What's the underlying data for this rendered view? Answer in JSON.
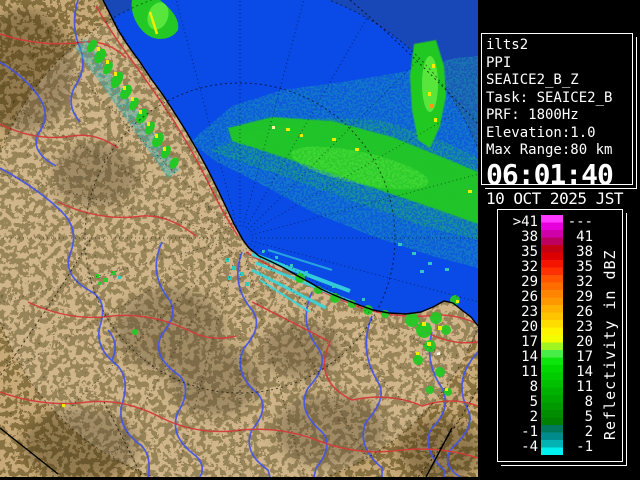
{
  "info_panel": {
    "lines": [
      "ilts2",
      "PPI",
      "SEAICE2_B_Z",
      "Task: SEAICE2_B",
      "PRF: 1800Hz",
      "Elevation:1.0",
      "Max Range:80 km"
    ],
    "time": "06:01:40",
    "date": "10 OCT 2025 JST"
  },
  "legend": {
    "title": "Reflectivity in dBZ",
    "rows": [
      {
        "left": ">41",
        "right": "---",
        "c1": "#ff38ff",
        "c2": "#e600dc"
      },
      {
        "left": "38",
        "right": "41",
        "c1": "#d000a8",
        "c2": "#bc0060"
      },
      {
        "left": "35",
        "right": "38",
        "c1": "#c40014",
        "c2": "#dc0000"
      },
      {
        "left": "32",
        "right": "35",
        "c1": "#f41400",
        "c2": "#ff3000"
      },
      {
        "left": "29",
        "right": "32",
        "c1": "#ff5400",
        "c2": "#ff6c00"
      },
      {
        "left": "26",
        "right": "29",
        "c1": "#ff8400",
        "c2": "#ff9800"
      },
      {
        "left": "23",
        "right": "26",
        "c1": "#ffb000",
        "c2": "#ffc400"
      },
      {
        "left": "20",
        "right": "23",
        "c1": "#ffdc00",
        "c2": "#fff400"
      },
      {
        "left": "17",
        "right": "20",
        "c1": "#f4fc00",
        "c2": "#a0f420"
      },
      {
        "left": "14",
        "right": "17",
        "c1": "#48ee48",
        "c2": "#0ce60c"
      },
      {
        "left": "11",
        "right": "14",
        "c1": "#00d800",
        "c2": "#00cc00"
      },
      {
        "left": "8",
        "right": "11",
        "c1": "#00c000",
        "c2": "#00b200"
      },
      {
        "left": "5",
        "right": "8",
        "c1": "#00a600",
        "c2": "#009a00"
      },
      {
        "left": "2",
        "right": "5",
        "c1": "#008e00",
        "c2": "#008200"
      },
      {
        "left": "-1",
        "right": "2",
        "c1": "#00785c",
        "c2": "#008c8c"
      },
      {
        "left": "-4",
        "right": "-1",
        "c1": "#00b2b2",
        "c2": "#00f0f0"
      }
    ]
  },
  "colors": {
    "sea_in": "#0a4ae6",
    "sea_out": "#1847b8",
    "land_tan": "#c8aa78",
    "land_dark": "#564419",
    "river": "#4455e8",
    "road": "#d23c3c",
    "echo_green": "#24c824",
    "echo_bright": "#58e63c",
    "echo_teal": "#18a2ae",
    "echo_cyan": "#38d8dc",
    "echo_yellow": "#f0ee00"
  }
}
